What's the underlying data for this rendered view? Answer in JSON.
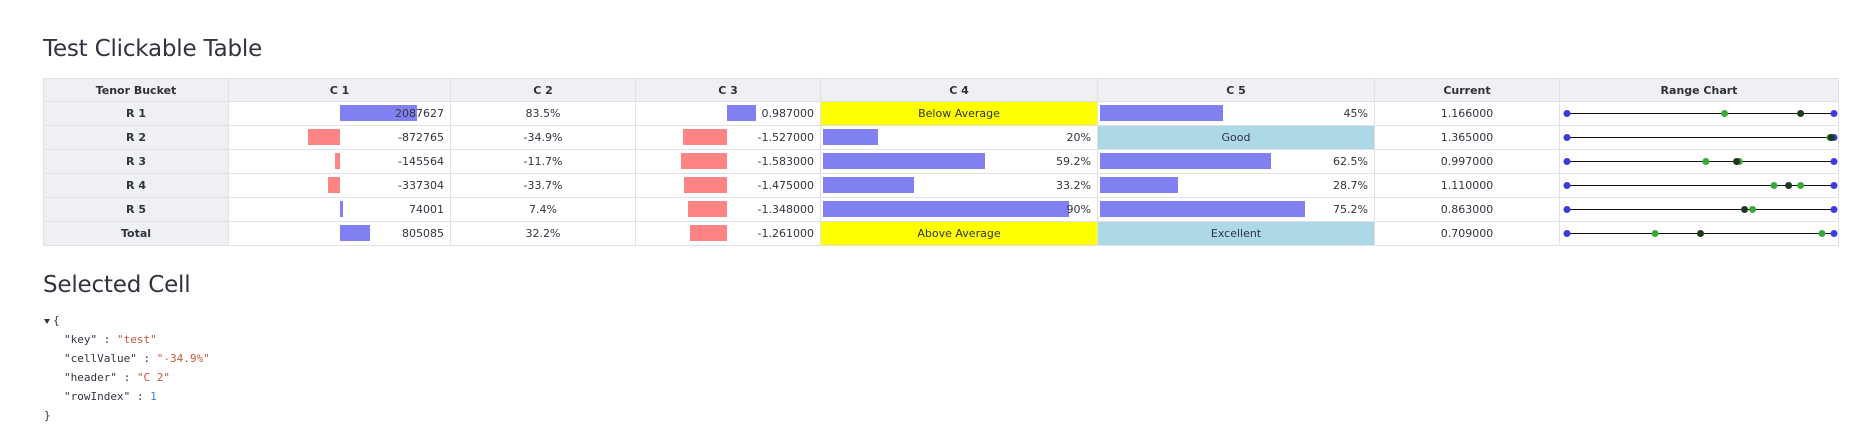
{
  "title": "Test Clickable Table",
  "selected_title": "Selected Cell",
  "columns": [
    "Tenor Bucket",
    "C 1",
    "C 2",
    "C 3",
    "C 4",
    "C 5",
    "Current",
    "Range Chart"
  ],
  "rows": [
    {
      "label": "R 1",
      "c1": "2087627",
      "c1v": 2087627,
      "c2": "83.5%",
      "c3": "0.987000",
      "c3v": 0.987,
      "c4": "Below Average",
      "c4type": "text",
      "c4v": null,
      "c5": "45%",
      "c5type": "bar",
      "c5v": 45,
      "current": "1.166000",
      "range": {
        "green": [
          0.59
        ],
        "black": [
          0.875
        ]
      }
    },
    {
      "label": "R 2",
      "c1": "-872765",
      "c1v": -872765,
      "c2": "-34.9%",
      "c3": "-1.527000",
      "c3v": -1.527,
      "c4": "20%",
      "c4type": "bar",
      "c4v": 20,
      "c5": "Good",
      "c5type": "text",
      "c5v": null,
      "current": "1.365000",
      "range": {
        "green": [
          0.985
        ],
        "black": [
          0.99
        ]
      }
    },
    {
      "label": "R 3",
      "c1": "-145564",
      "c1v": -145564,
      "c2": "-11.7%",
      "c3": "-1.583000",
      "c3v": -1.583,
      "c4": "59.2%",
      "c4type": "bar",
      "c4v": 59.2,
      "c5": "62.5%",
      "c5type": "bar",
      "c5v": 62.5,
      "current": "0.997000",
      "range": {
        "green": [
          0.52,
          0.645
        ],
        "black": [
          0.635
        ]
      }
    },
    {
      "label": "R 4",
      "c1": "-337304",
      "c1v": -337304,
      "c2": "-33.7%",
      "c3": "-1.475000",
      "c3v": -1.475,
      "c4": "33.2%",
      "c4type": "bar",
      "c4v": 33.2,
      "c5": "28.7%",
      "c5type": "bar",
      "c5v": 28.7,
      "current": "1.110000",
      "range": {
        "green": [
          0.775,
          0.875
        ],
        "black": [
          0.83
        ]
      }
    },
    {
      "label": "R 5",
      "c1": "74001",
      "c1v": 74001,
      "c2": "7.4%",
      "c3": "-1.348000",
      "c3v": -1.348,
      "c4": "90%",
      "c4type": "bar",
      "c4v": 90,
      "c5": "75.2%",
      "c5type": "bar",
      "c5v": 75.2,
      "current": "0.863000",
      "range": {
        "green": [
          0.695
        ],
        "black": [
          0.665
        ]
      }
    },
    {
      "label": "Total",
      "c1": "805085",
      "c1v": 805085,
      "c2": "32.2%",
      "c3": "-1.261000",
      "c3v": -1.261,
      "c4": "Above Average",
      "c4type": "text",
      "c4v": null,
      "c5": "Excellent",
      "c5type": "text",
      "c5v": null,
      "current": "0.709000",
      "range": {
        "green": [
          0.33,
          0.955
        ],
        "black": [
          0.5
        ]
      }
    }
  ],
  "colors": {
    "pos_bar": "#8080f2",
    "neg_bar": "#ff8585",
    "yellow": "#ffff00",
    "light_blue": "#add8e6",
    "range_endpoint": "#3b3bdb",
    "range_green": "#3aa83a",
    "range_black": "#1e3a1e"
  },
  "selected_cell": {
    "key": "\"test\"",
    "cellValue": "\"-34.9%\"",
    "header": "\"C 2\"",
    "rowIndex": "1"
  },
  "json_keys": {
    "key": "\"key\"",
    "cellValue": "\"cellValue\"",
    "header": "\"header\"",
    "rowIndex": "\"rowIndex\""
  },
  "json_open": "{",
  "json_close": "}",
  "json_colon": ":"
}
